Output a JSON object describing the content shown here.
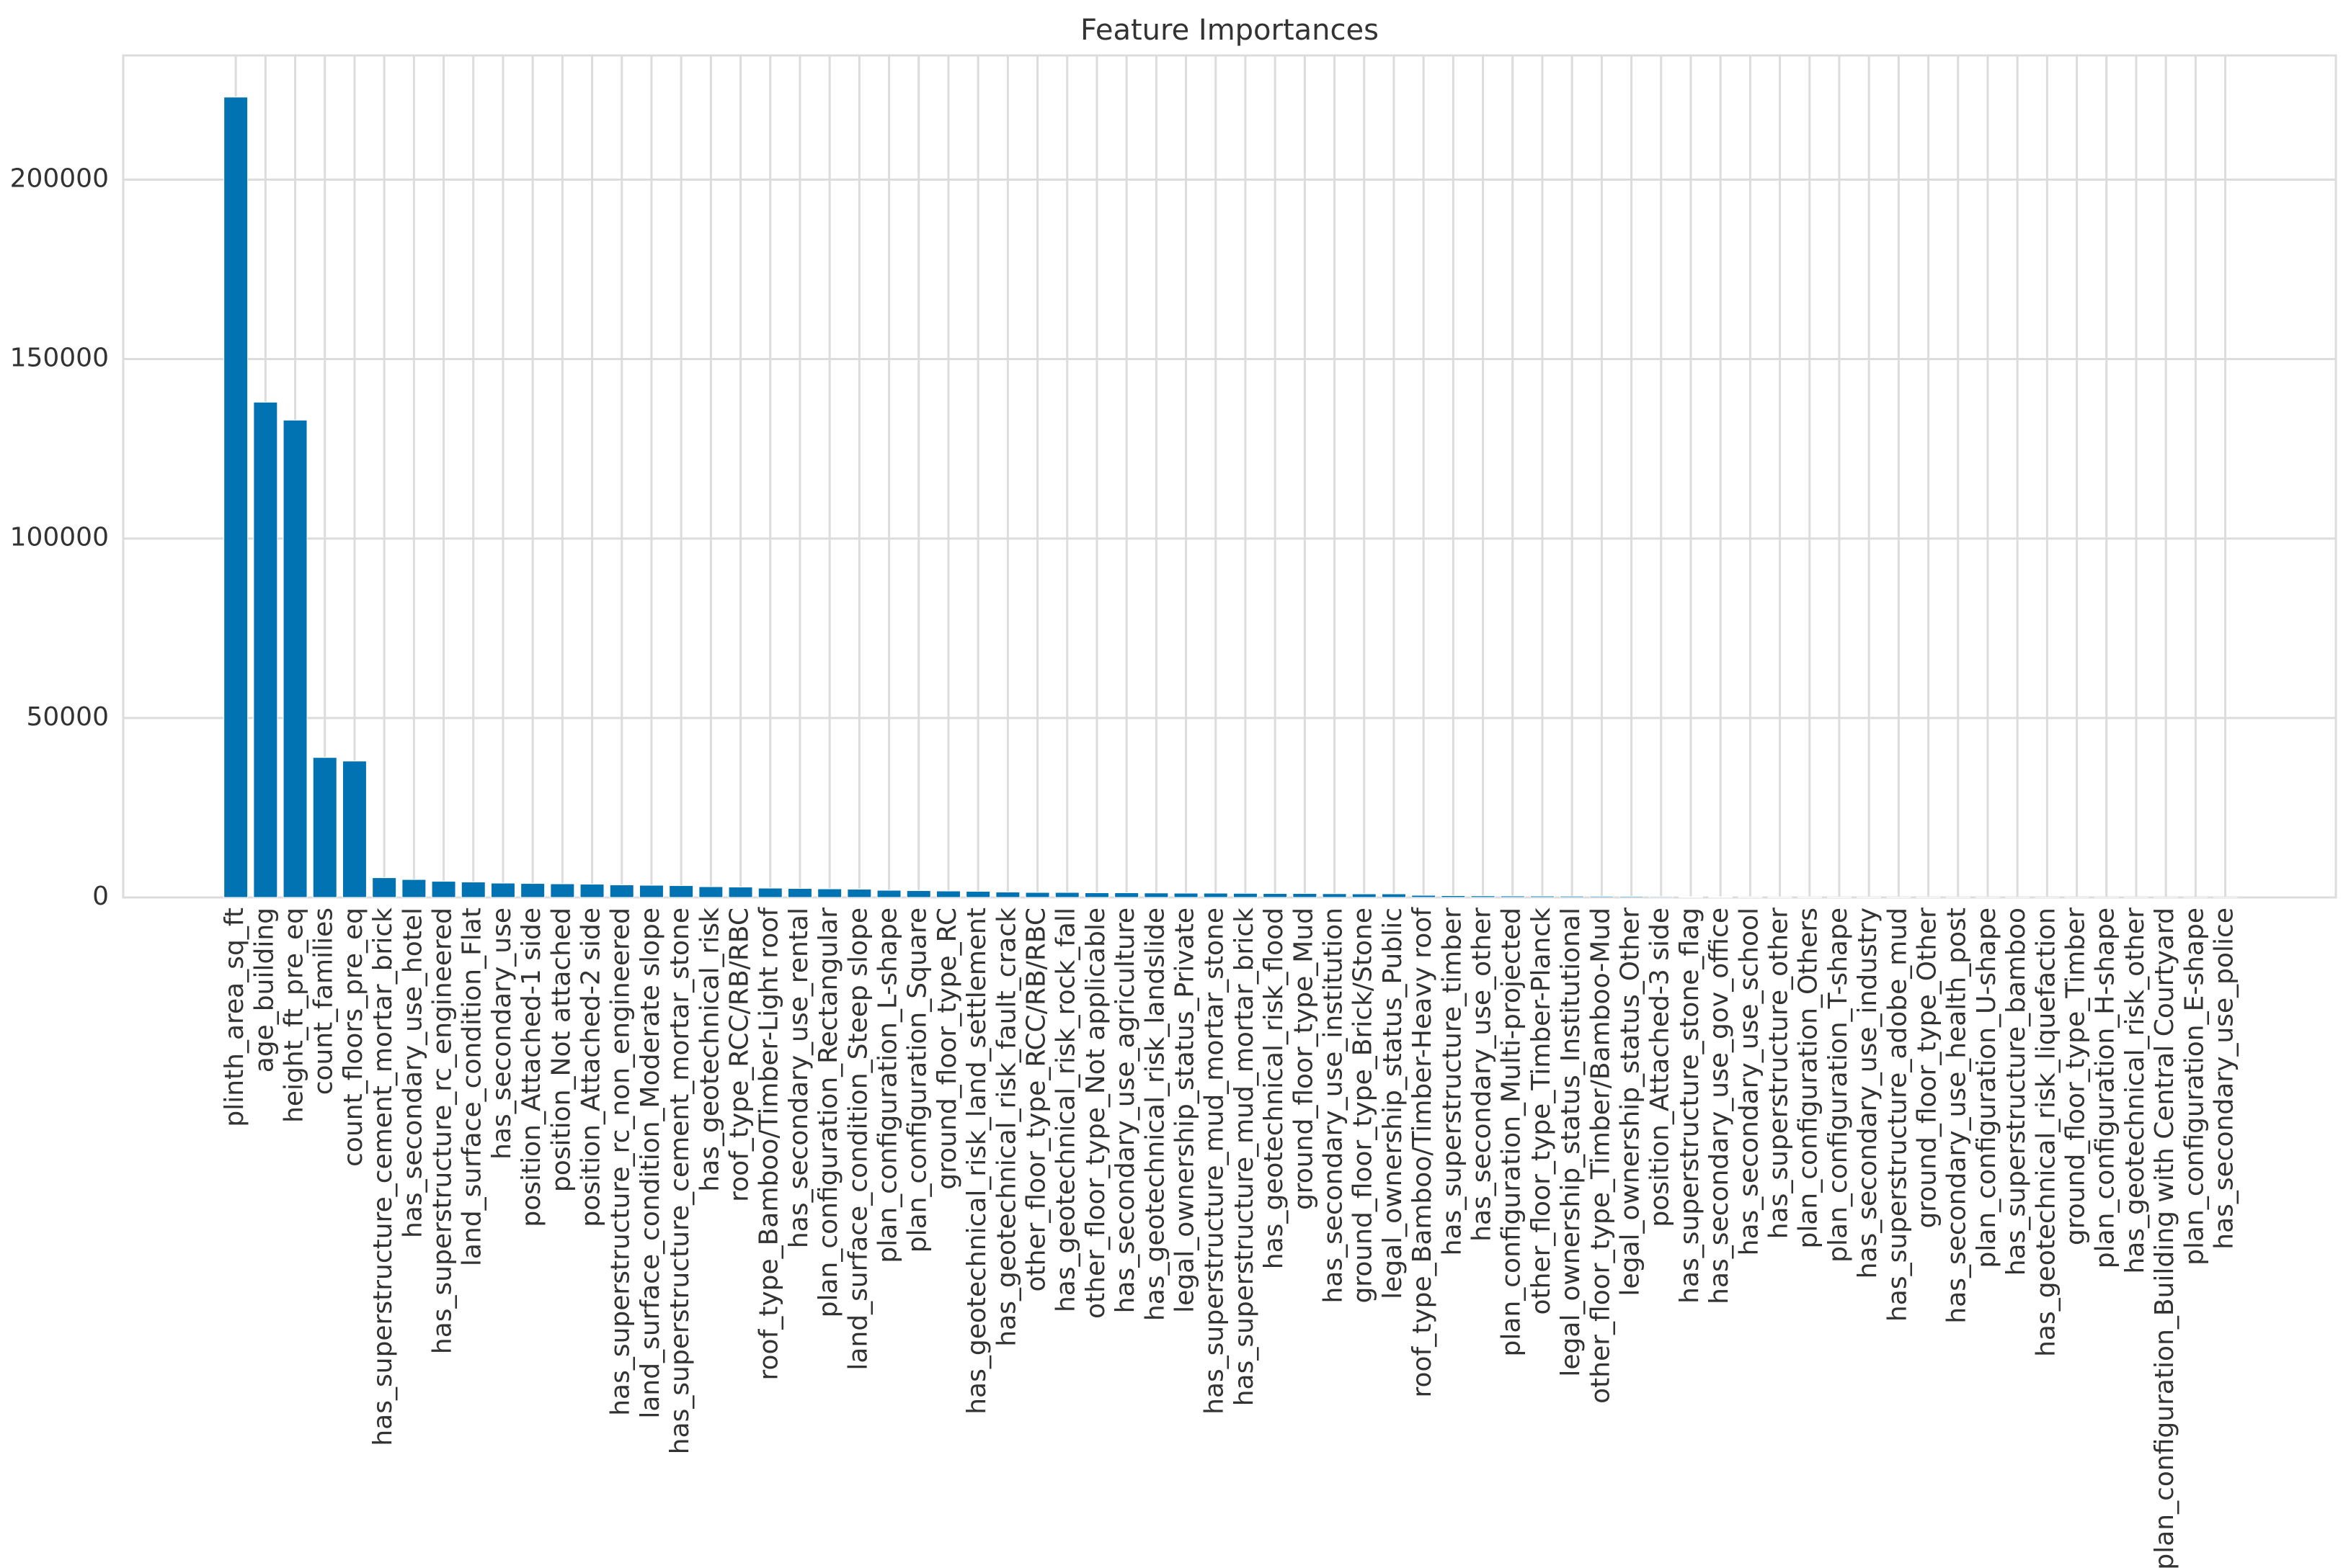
{
  "chart_data": {
    "type": "bar",
    "title": "Feature Importances",
    "categories": [
      "plinth_area_sq_ft",
      "age_building",
      "height_ft_pre_eq",
      "count_families",
      "count_floors_pre_eq",
      "has_superstructure_cement_mortar_brick",
      "has_secondary_use_hotel",
      "has_superstructure_rc_engineered",
      "land_surface_condition_Flat",
      "has_secondary_use",
      "position_Attached-1 side",
      "position_Not attached",
      "position_Attached-2 side",
      "has_superstructure_rc_non_engineered",
      "land_surface_condition_Moderate slope",
      "has_superstructure_cement_mortar_stone",
      "has_geotechnical_risk",
      "roof_type_RCC/RB/RBC",
      "roof_type_Bamboo/Timber-Light roof",
      "has_secondary_use_rental",
      "plan_configuration_Rectangular",
      "land_surface_condition_Steep slope",
      "plan_configuration_L-shape",
      "plan_configuration_Square",
      "ground_floor_type_RC",
      "has_geotechnical_risk_land_settlement",
      "has_geotechnical_risk_fault_crack",
      "other_floor_type_RCC/RB/RBC",
      "has_geotechnical_risk_rock_fall",
      "other_floor_type_Not applicable",
      "has_secondary_use_agriculture",
      "has_geotechnical_risk_landslide",
      "legal_ownership_status_Private",
      "has_superstructure_mud_mortar_stone",
      "has_superstructure_mud_mortar_brick",
      "has_geotechnical_risk_flood",
      "ground_floor_type_Mud",
      "has_secondary_use_institution",
      "ground_floor_type_Brick/Stone",
      "legal_ownership_status_Public",
      "roof_type_Bamboo/Timber-Heavy roof",
      "has_superstructure_timber",
      "has_secondary_use_other",
      "plan_configuration_Multi-projected",
      "other_floor_type_Timber-Planck",
      "legal_ownership_status_Institutional",
      "other_floor_type_Timber/Bamboo-Mud",
      "legal_ownership_status_Other",
      "position_Attached-3 side",
      "has_superstructure_stone_flag",
      "has_secondary_use_gov_office",
      "has_secondary_use_school",
      "has_superstructure_other",
      "plan_configuration_Others",
      "plan_configuration_T-shape",
      "has_secondary_use_industry",
      "has_superstructure_adobe_mud",
      "ground_floor_type_Other",
      "has_secondary_use_health_post",
      "plan_configuration_U-shape",
      "has_superstructure_bamboo",
      "has_geotechnical_risk_liquefaction",
      "ground_floor_type_Timber",
      "plan_configuration_H-shape",
      "has_geotechnical_risk_other",
      "plan_configuration_Building with Central Courtyard",
      "plan_configuration_E-shape",
      "has_secondary_use_police"
    ],
    "values": [
      223000,
      138000,
      133000,
      39000,
      38000,
      5500,
      5000,
      4500,
      4300,
      4000,
      3900,
      3800,
      3700,
      3500,
      3400,
      3300,
      3000,
      2900,
      2600,
      2500,
      2400,
      2300,
      2000,
      1900,
      1800,
      1700,
      1500,
      1400,
      1400,
      1300,
      1300,
      1250,
      1200,
      1200,
      1150,
      1100,
      1100,
      1050,
      1000,
      1000,
      600,
      500,
      450,
      400,
      380,
      350,
      320,
      300,
      250,
      200,
      180,
      160,
      140,
      120,
      100,
      90,
      80,
      70,
      60,
      50,
      40,
      30,
      25,
      20,
      15,
      10,
      5,
      3
    ],
    "color": "#0173b2",
    "ylim": [
      0,
      234600
    ],
    "yticks": [
      0,
      50000,
      100000,
      150000,
      200000
    ],
    "grid": true
  }
}
